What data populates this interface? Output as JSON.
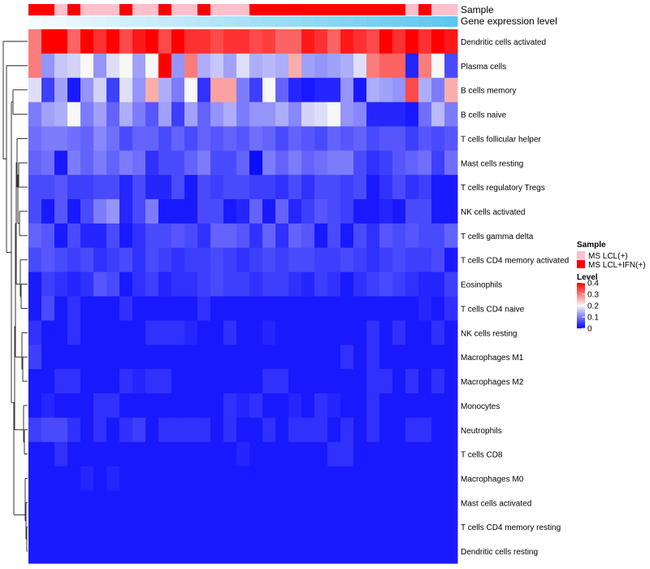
{
  "chart_data": {
    "type": "heatmap",
    "title": "",
    "columns": 33,
    "annotations": {
      "sample_label": "Sample",
      "gene_label": "Gene expression level",
      "sample_values": [
        2,
        2,
        1,
        2,
        1,
        1,
        1,
        2,
        1,
        1,
        2,
        1,
        1,
        2,
        1,
        1,
        1,
        2,
        2,
        2,
        2,
        2,
        2,
        2,
        2,
        2,
        2,
        2,
        2,
        1,
        2,
        1,
        1
      ],
      "gene_gradient": [
        "#f4fbff",
        "#5fc6ef"
      ]
    },
    "rows": [
      {
        "label": "Dendritic cells activated",
        "values": [
          0.3,
          0.4,
          0.4,
          0.32,
          0.4,
          0.36,
          0.4,
          0.34,
          0.38,
          0.42,
          0.34,
          0.4,
          0.36,
          0.36,
          0.34,
          0.36,
          0.36,
          0.34,
          0.35,
          0.32,
          0.32,
          0.38,
          0.36,
          0.32,
          0.38,
          0.36,
          0.34,
          0.4,
          0.36,
          0.4,
          0.36,
          0.4,
          0.38
        ]
      },
      {
        "label": "Plasma cells",
        "values": [
          0.3,
          0.12,
          0.16,
          0.17,
          0.2,
          0.12,
          0.18,
          0.2,
          0.13,
          0.2,
          0.41,
          0.12,
          0.3,
          0.14,
          0.16,
          0.13,
          0.18,
          0.14,
          0.15,
          0.14,
          0.26,
          0.13,
          0.12,
          0.13,
          0.14,
          0.18,
          0.3,
          0.32,
          0.32,
          0.03,
          0.3,
          0.2,
          0.06
        ]
      },
      {
        "label": "B cells memory",
        "values": [
          0.18,
          0.05,
          0.13,
          0.02,
          0.12,
          0.17,
          0.05,
          0.18,
          0.12,
          0.26,
          0.14,
          0.1,
          0.2,
          0.04,
          0.27,
          0.27,
          0.1,
          0.05,
          0.2,
          0.08,
          0.03,
          0.02,
          0.03,
          0.03,
          0.12,
          0.02,
          0.14,
          0.13,
          0.12,
          0.34,
          0.14,
          0.1,
          0.26
        ]
      },
      {
        "label": "B cells naive",
        "values": [
          0.1,
          0.13,
          0.14,
          0.2,
          0.1,
          0.13,
          0.08,
          0.14,
          0.1,
          0.07,
          0.13,
          0.05,
          0.13,
          0.08,
          0.12,
          0.14,
          0.1,
          0.12,
          0.12,
          0.14,
          0.11,
          0.17,
          0.18,
          0.2,
          0.12,
          0.11,
          0.03,
          0.03,
          0.03,
          0.02,
          0.09,
          0.15,
          0.1
        ]
      },
      {
        "label": "T cells follicular helper",
        "values": [
          0.09,
          0.1,
          0.1,
          0.09,
          0.08,
          0.11,
          0.09,
          0.06,
          0.08,
          0.08,
          0.06,
          0.08,
          0.06,
          0.08,
          0.07,
          0.08,
          0.07,
          0.09,
          0.08,
          0.06,
          0.08,
          0.07,
          0.06,
          0.08,
          0.07,
          0.08,
          0.06,
          0.07,
          0.07,
          0.05,
          0.07,
          0.06,
          0.07
        ]
      },
      {
        "label": "Mast cells resting",
        "values": [
          0.08,
          0.09,
          0.02,
          0.1,
          0.08,
          0.1,
          0.08,
          0.1,
          0.09,
          0.04,
          0.06,
          0.06,
          0.08,
          0.1,
          0.06,
          0.06,
          0.08,
          0.01,
          0.1,
          0.08,
          0.1,
          0.08,
          0.09,
          0.1,
          0.1,
          0.06,
          0.04,
          0.05,
          0.07,
          0.08,
          0.09,
          0.05,
          0.09
        ]
      },
      {
        "label": "T cells regulatory  Tregs",
        "values": [
          0.06,
          0.06,
          0.07,
          0.05,
          0.05,
          0.06,
          0.06,
          0.03,
          0.06,
          0.03,
          0.03,
          0.06,
          0.02,
          0.06,
          0.05,
          0.06,
          0.06,
          0.05,
          0.05,
          0.04,
          0.06,
          0.04,
          0.06,
          0.06,
          0.05,
          0.06,
          0.02,
          0.04,
          0.06,
          0.04,
          0.05,
          0.02,
          0.02
        ]
      },
      {
        "label": "NK cells activated",
        "values": [
          0.06,
          0.02,
          0.07,
          0.02,
          0.06,
          0.1,
          0.12,
          0.03,
          0.06,
          0.1,
          0.02,
          0.02,
          0.02,
          0.06,
          0.06,
          0.02,
          0.03,
          0.08,
          0.02,
          0.08,
          0.03,
          0.05,
          0.07,
          0.06,
          0.05,
          0.02,
          0.02,
          0.03,
          0.02,
          0.06,
          0.06,
          0.02,
          0.02
        ]
      },
      {
        "label": "T cells gamma delta",
        "values": [
          0.08,
          0.07,
          0.02,
          0.06,
          0.03,
          0.03,
          0.06,
          0.02,
          0.04,
          0.06,
          0.06,
          0.07,
          0.06,
          0.04,
          0.08,
          0.08,
          0.07,
          0.04,
          0.08,
          0.04,
          0.08,
          0.07,
          0.02,
          0.06,
          0.02,
          0.06,
          0.04,
          0.07,
          0.06,
          0.07,
          0.06,
          0.06,
          0.08
        ]
      },
      {
        "label": "T cells CD4 memory activated",
        "values": [
          0.06,
          0.07,
          0.06,
          0.05,
          0.06,
          0.04,
          0.05,
          0.06,
          0.04,
          0.06,
          0.05,
          0.04,
          0.05,
          0.05,
          0.06,
          0.05,
          0.04,
          0.05,
          0.06,
          0.05,
          0.06,
          0.06,
          0.05,
          0.05,
          0.06,
          0.05,
          0.04,
          0.05,
          0.06,
          0.05,
          0.05,
          0.06,
          0.02
        ]
      },
      {
        "label": "Eosinophils",
        "values": [
          0.02,
          0.05,
          0.04,
          0.03,
          0.04,
          0.07,
          0.06,
          0.02,
          0.04,
          0.05,
          0.03,
          0.04,
          0.04,
          0.05,
          0.06,
          0.05,
          0.05,
          0.04,
          0.05,
          0.05,
          0.04,
          0.03,
          0.05,
          0.04,
          0.02,
          0.04,
          0.05,
          0.06,
          0.05,
          0.04,
          0.03,
          0.03,
          0.05
        ]
      },
      {
        "label": "T cells CD4 naive",
        "values": [
          0.02,
          0.06,
          0.02,
          0.04,
          0.02,
          0.02,
          0.02,
          0.04,
          0.02,
          0.02,
          0.02,
          0.02,
          0.02,
          0.04,
          0.02,
          0.02,
          0.02,
          0.02,
          0.02,
          0.02,
          0.02,
          0.02,
          0.02,
          0.02,
          0.02,
          0.02,
          0.02,
          0.02,
          0.02,
          0.02,
          0.03,
          0.02,
          0.04
        ]
      },
      {
        "label": "NK cells resting",
        "values": [
          0.04,
          0.02,
          0.02,
          0.04,
          0.02,
          0.02,
          0.02,
          0.02,
          0.02,
          0.04,
          0.04,
          0.04,
          0.03,
          0.02,
          0.02,
          0.04,
          0.02,
          0.02,
          0.03,
          0.02,
          0.02,
          0.02,
          0.02,
          0.02,
          0.02,
          0.02,
          0.04,
          0.02,
          0.04,
          0.02,
          0.02,
          0.04,
          0.02
        ]
      },
      {
        "label": "Macrophages M1",
        "values": [
          0.05,
          0.02,
          0.02,
          0.02,
          0.02,
          0.02,
          0.02,
          0.02,
          0.02,
          0.02,
          0.02,
          0.02,
          0.02,
          0.02,
          0.02,
          0.02,
          0.02,
          0.02,
          0.02,
          0.02,
          0.02,
          0.02,
          0.02,
          0.02,
          0.04,
          0.02,
          0.04,
          0.02,
          0.02,
          0.02,
          0.02,
          0.02,
          0.02
        ]
      },
      {
        "label": "Macrophages M2",
        "values": [
          0.02,
          0.02,
          0.04,
          0.04,
          0.02,
          0.02,
          0.02,
          0.04,
          0.03,
          0.04,
          0.04,
          0.02,
          0.02,
          0.02,
          0.02,
          0.02,
          0.02,
          0.02,
          0.04,
          0.04,
          0.02,
          0.02,
          0.02,
          0.02,
          0.02,
          0.02,
          0.04,
          0.04,
          0.02,
          0.04,
          0.02,
          0.04,
          0.02
        ]
      },
      {
        "label": "Monocytes",
        "values": [
          0.02,
          0.03,
          0.02,
          0.02,
          0.02,
          0.04,
          0.04,
          0.02,
          0.02,
          0.02,
          0.02,
          0.02,
          0.02,
          0.02,
          0.02,
          0.04,
          0.03,
          0.04,
          0.02,
          0.02,
          0.03,
          0.02,
          0.04,
          0.03,
          0.02,
          0.02,
          0.04,
          0.02,
          0.02,
          0.02,
          0.02,
          0.02,
          0.02
        ]
      },
      {
        "label": "Neutrophils",
        "values": [
          0.05,
          0.06,
          0.06,
          0.04,
          0.02,
          0.04,
          0.02,
          0.04,
          0.05,
          0.02,
          0.04,
          0.04,
          0.04,
          0.04,
          0.02,
          0.04,
          0.02,
          0.02,
          0.04,
          0.02,
          0.04,
          0.04,
          0.04,
          0.02,
          0.04,
          0.02,
          0.04,
          0.02,
          0.02,
          0.04,
          0.04,
          0.02,
          0.02
        ]
      },
      {
        "label": "T cells CD8",
        "values": [
          0.02,
          0.02,
          0.04,
          0.02,
          0.02,
          0.02,
          0.02,
          0.02,
          0.02,
          0.02,
          0.02,
          0.02,
          0.02,
          0.02,
          0.02,
          0.02,
          0.03,
          0.02,
          0.02,
          0.02,
          0.02,
          0.02,
          0.02,
          0.04,
          0.04,
          0.02,
          0.02,
          0.02,
          0.02,
          0.02,
          0.02,
          0.02,
          0.02
        ]
      },
      {
        "label": "Macrophages M0",
        "values": [
          0.02,
          0.02,
          0.02,
          0.02,
          0.03,
          0.02,
          0.03,
          0.02,
          0.02,
          0.02,
          0.02,
          0.02,
          0.02,
          0.02,
          0.02,
          0.02,
          0.02,
          0.02,
          0.02,
          0.02,
          0.02,
          0.02,
          0.02,
          0.02,
          0.02,
          0.02,
          0.02,
          0.02,
          0.02,
          0.02,
          0.02,
          0.02,
          0.02
        ]
      },
      {
        "label": "Mast cells activated",
        "values": [
          0.02,
          0.02,
          0.02,
          0.02,
          0.02,
          0.02,
          0.02,
          0.02,
          0.02,
          0.02,
          0.02,
          0.02,
          0.02,
          0.02,
          0.02,
          0.02,
          0.02,
          0.02,
          0.02,
          0.02,
          0.02,
          0.02,
          0.02,
          0.02,
          0.02,
          0.02,
          0.02,
          0.02,
          0.02,
          0.02,
          0.02,
          0.02,
          0.02
        ]
      },
      {
        "label": "T cells CD4 memory resting",
        "values": [
          0.02,
          0.02,
          0.02,
          0.02,
          0.02,
          0.02,
          0.02,
          0.02,
          0.02,
          0.02,
          0.02,
          0.02,
          0.02,
          0.02,
          0.02,
          0.02,
          0.02,
          0.02,
          0.02,
          0.02,
          0.02,
          0.02,
          0.02,
          0.02,
          0.02,
          0.02,
          0.02,
          0.02,
          0.02,
          0.02,
          0.02,
          0.02,
          0.02
        ]
      },
      {
        "label": "Dendritic cells resting",
        "values": [
          0.02,
          0.02,
          0.02,
          0.02,
          0.02,
          0.02,
          0.02,
          0.02,
          0.02,
          0.02,
          0.02,
          0.02,
          0.02,
          0.02,
          0.02,
          0.02,
          0.02,
          0.02,
          0.02,
          0.02,
          0.02,
          0.02,
          0.02,
          0.02,
          0.02,
          0.02,
          0.02,
          0.02,
          0.02,
          0.02,
          0.02,
          0.02,
          0.02
        ]
      }
    ],
    "legend": {
      "sample_title": "Sample",
      "sample_items": [
        {
          "label": "MS LCL(+)",
          "color": "#ffc0cb"
        },
        {
          "label": "MS LCL+IFN(+)",
          "color": "#ff0000"
        }
      ],
      "level_title": "Level",
      "level_ticks": [
        "0.4",
        "0.3",
        "0.2",
        "0.1",
        "0"
      ],
      "level_range": [
        0,
        0.4
      ],
      "color_stops": [
        "#0000ff",
        "#f7f7f7",
        "#ff0000"
      ]
    }
  }
}
